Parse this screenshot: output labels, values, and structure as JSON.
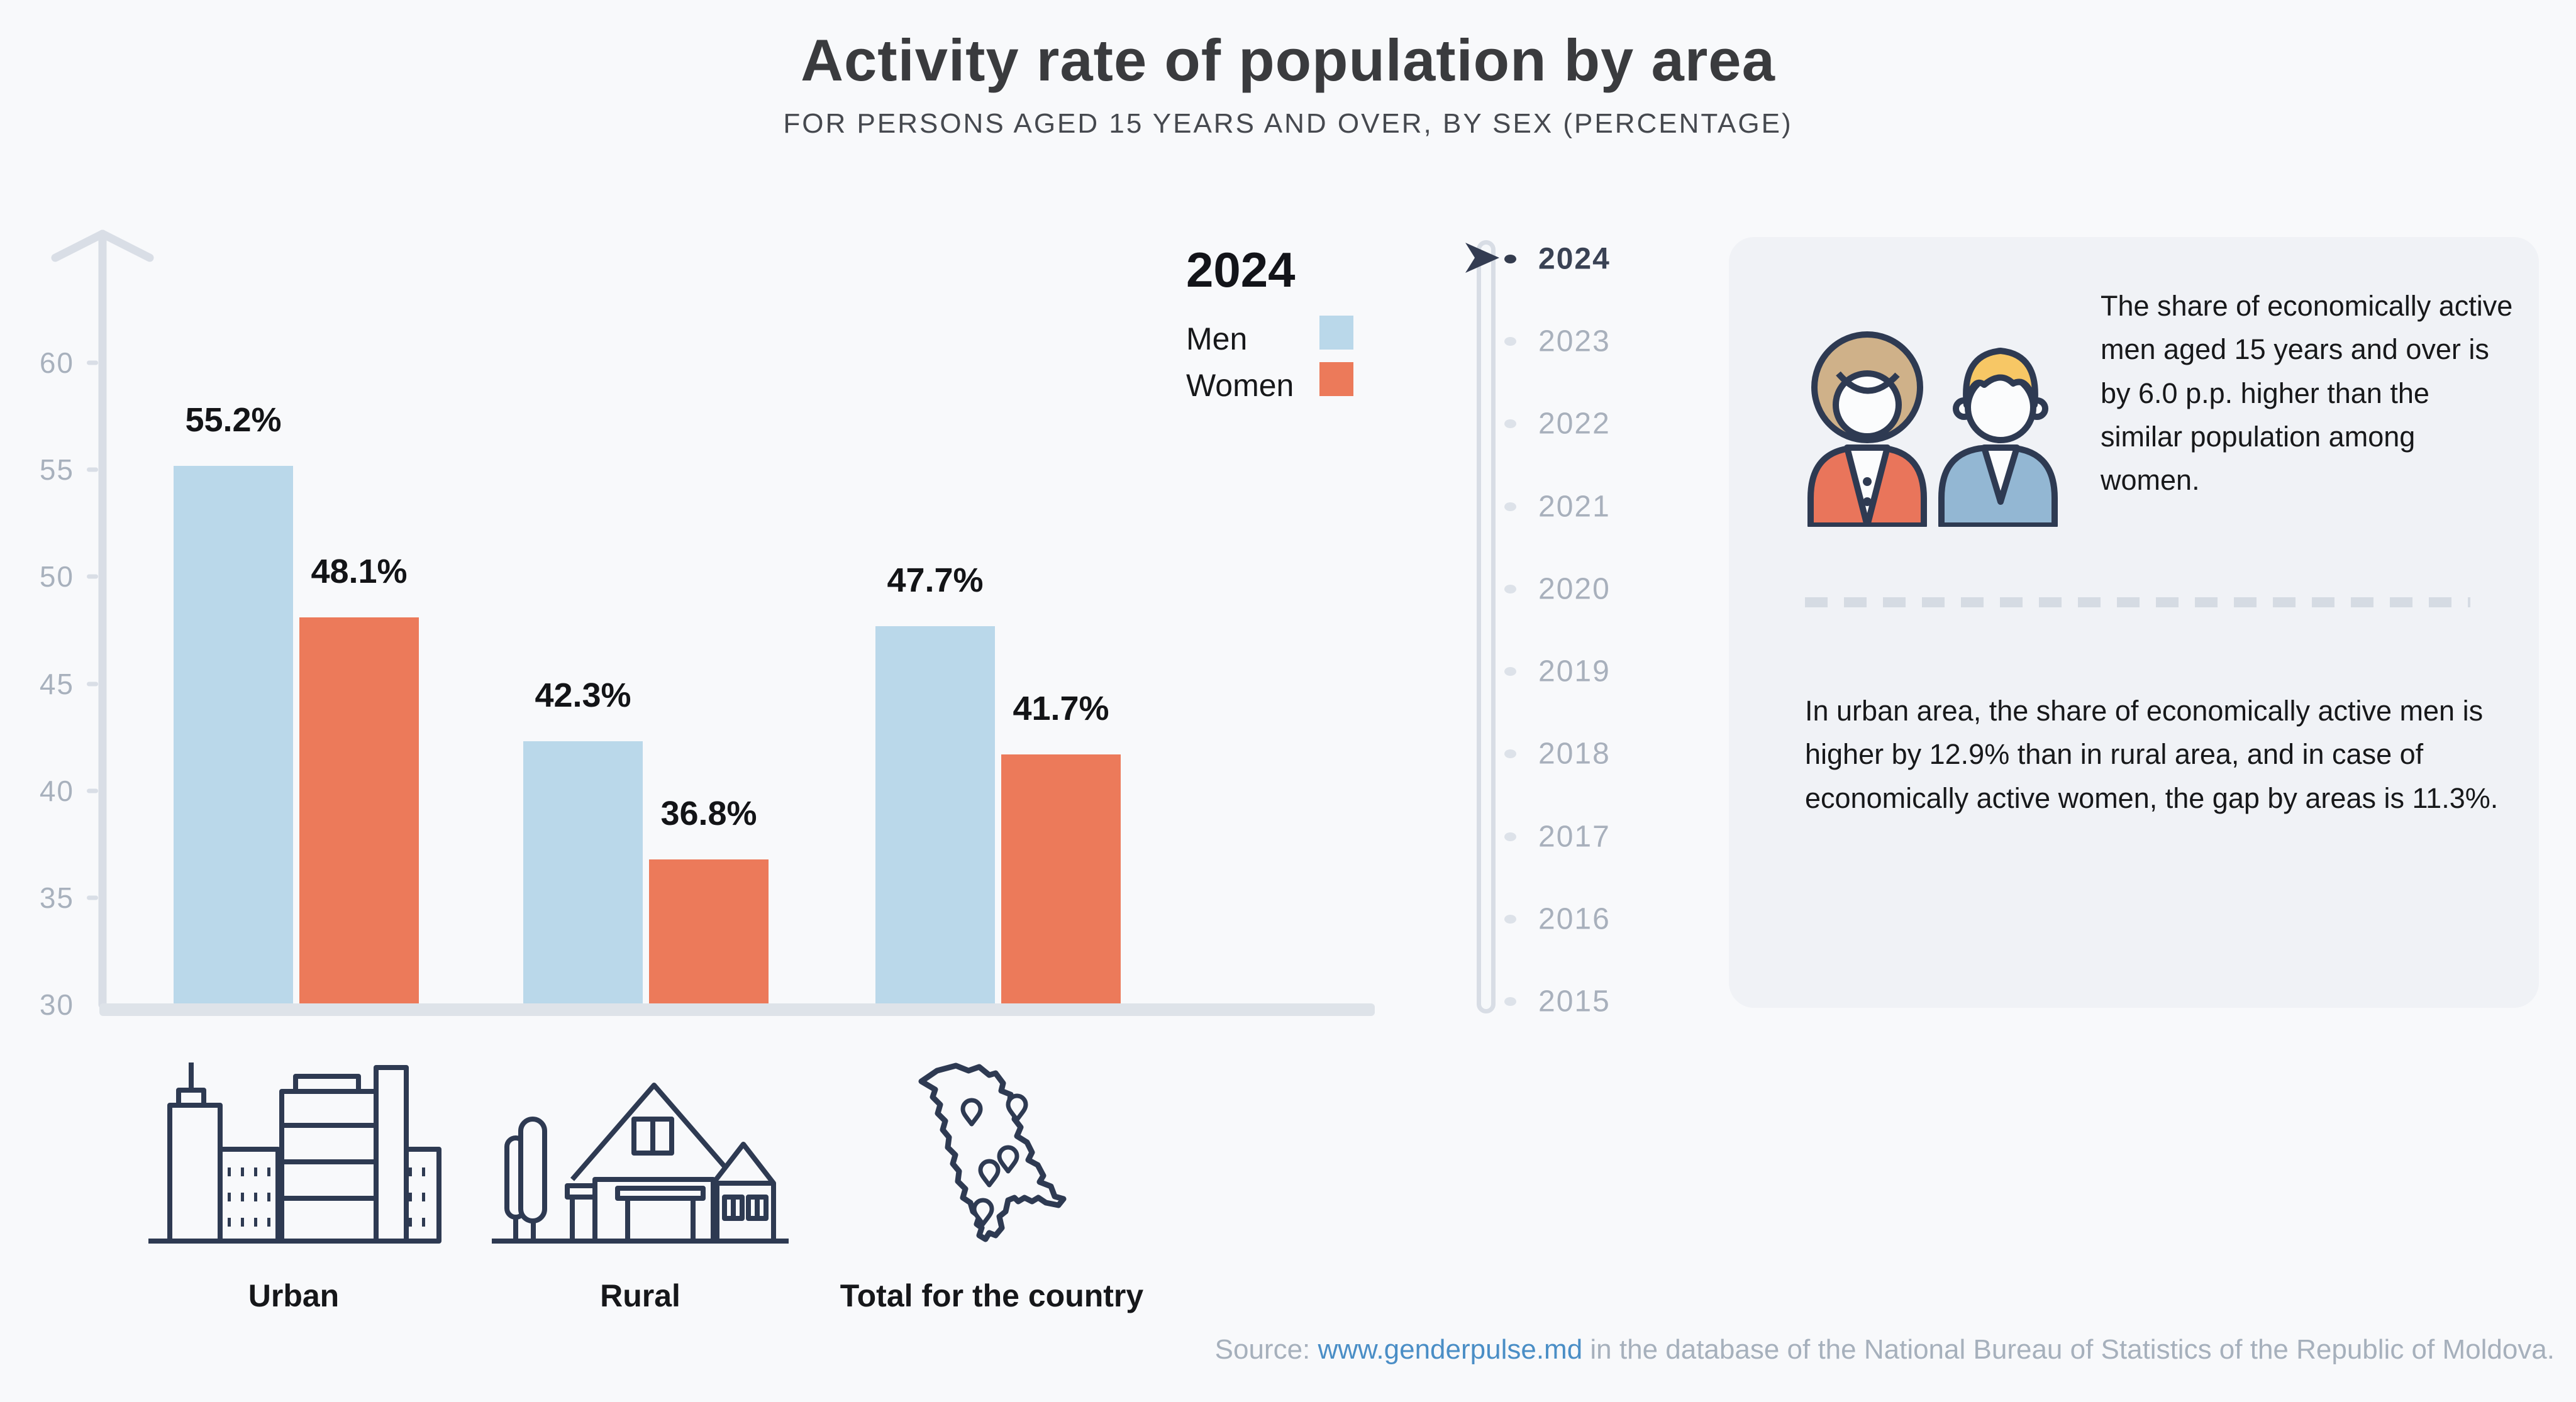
{
  "header": {
    "title": "Activity rate of population by area",
    "subtitle": "FOR PERSONS AGED 15 YEARS AND OVER, BY SEX (PERCENTAGE)"
  },
  "chart_data": {
    "type": "bar",
    "title": "Activity rate of population by area",
    "subtitle": "FOR PERSONS AGED 15 YEARS AND OVER, BY SEX (PERCENTAGE)",
    "categories": [
      "Urban",
      "Rural",
      "Total for the country"
    ],
    "series": [
      {
        "name": "Men",
        "color": "#bad8ea",
        "values": [
          55.2,
          42.3,
          47.7
        ]
      },
      {
        "name": "Women",
        "color": "#ec7a5a",
        "values": [
          48.1,
          36.8,
          41.7
        ]
      }
    ],
    "value_labels": [
      "55.2%",
      "48.1%",
      "42.3%",
      "36.8%",
      "47.7%",
      "41.7%"
    ],
    "unit": "%",
    "ylim": [
      30,
      63
    ],
    "yticks": [
      30,
      35,
      40,
      45,
      50,
      55,
      60
    ],
    "grid": false,
    "legend_position": "top-right",
    "selected_year": "2024"
  },
  "legend": {
    "year": "2024",
    "items": [
      {
        "label": "Men",
        "color": "#bad8ea"
      },
      {
        "label": "Women",
        "color": "#ec7a5a"
      }
    ]
  },
  "timeline": {
    "active_year": "2024",
    "years": [
      "2024",
      "2023",
      "2022",
      "2021",
      "2020",
      "2019",
      "2018",
      "2017",
      "2016",
      "2015"
    ]
  },
  "panel": {
    "paragraph1": "The share of economically active men aged 15 years and over is by 6.0 p.p. higher than the similar population among women.",
    "paragraph2": "In urban area, the share of economically active men is higher by 12.9% than in rural area, and in case of economically active women, the gap by areas is 11.3%."
  },
  "source": {
    "prefix": "Source: ",
    "link": "www.genderpulse.md",
    "suffix": " in the database of the National Bureau of Statistics of the Republic of Moldova."
  },
  "icons": {
    "urban": "city-skyline-icon",
    "rural": "village-house-icon",
    "total": "moldova-map-icon",
    "panel": "woman-and-man-icon",
    "timeline_cursor": "arrow-cursor-icon",
    "y_axis": "up-arrow-axis-icon"
  },
  "colors": {
    "page_bg": "#f8f9fb",
    "panel_bg": "#f0f2f6",
    "men": "#bad8ea",
    "women": "#ec7a5a",
    "outline_navy": "#2e3a52",
    "axis_gray": "#d9dee6",
    "muted_text": "#a8b1bd",
    "active_text": "#3a4254",
    "link_blue": "#4a8ec6",
    "woman_hair": "#cfb189",
    "woman_jacket": "#e9755b",
    "man_hair": "#f7c765",
    "man_suit": "#93b7d3"
  }
}
